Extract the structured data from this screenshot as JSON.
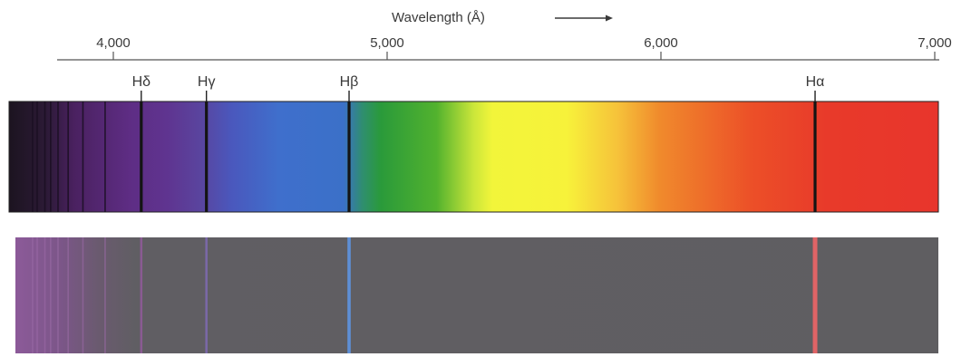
{
  "axis": {
    "title": "Wavelength (Å)",
    "unit": "Å",
    "range": [
      3650,
      7000
    ],
    "ticks": [
      {
        "value": 4000,
        "label": "4,000"
      },
      {
        "value": 5000,
        "label": "5,000"
      },
      {
        "value": 6000,
        "label": "6,000"
      },
      {
        "value": 7000,
        "label": "7,000"
      }
    ]
  },
  "lines": [
    {
      "name": "Hδ",
      "symbol": "H",
      "greek": "δ",
      "wavelength": 4102
    },
    {
      "name": "Hγ",
      "symbol": "H",
      "greek": "γ",
      "wavelength": 4340
    },
    {
      "name": "Hβ",
      "symbol": "H",
      "greek": "β",
      "wavelength": 4861
    },
    {
      "name": "Hα",
      "symbol": "H",
      "greek": "α",
      "wavelength": 6563
    }
  ],
  "series_lines": [
    3705,
    3722,
    3750,
    3771,
    3798,
    3835,
    3889,
    3970
  ],
  "colors": {
    "absorption_line": "#141414",
    "emission_background": "#5f5e61",
    "emission_hdelta": "#8a5a92",
    "emission_hgamma": "#7b68a8",
    "emission_hbeta": "#5e8fd6",
    "emission_halpha": "#e06466"
  }
}
